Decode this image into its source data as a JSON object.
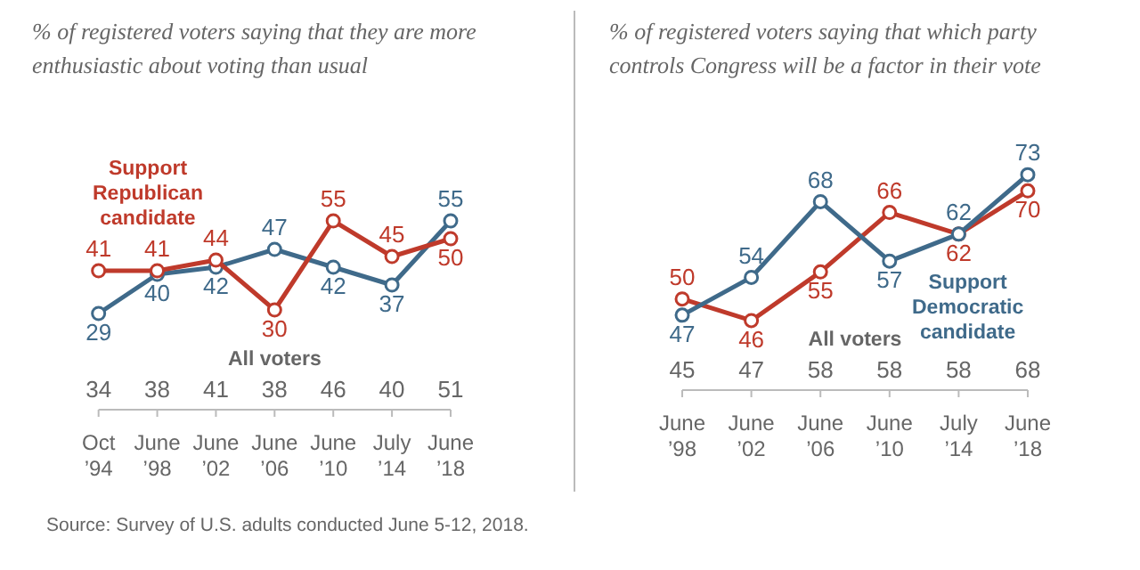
{
  "chart_data": [
    {
      "type": "line",
      "title": "% of registered voters saying that they are more enthusiastic about voting than usual",
      "categories": [
        "Oct ’94",
        "June ’98",
        "June ’02",
        "June ’06",
        "June ’10",
        "July ’14",
        "June ’18"
      ],
      "marker": "circle",
      "data_labels": true,
      "legend": false,
      "grid": false,
      "series": [
        {
          "name": "Support Republican candidate",
          "color": "#bf3a2b",
          "values": [
            41,
            41,
            44,
            30,
            55,
            45,
            50
          ]
        },
        {
          "color": "#3f6a8a",
          "values": [
            29,
            40,
            42,
            47,
            42,
            37,
            55
          ]
        }
      ],
      "annotations": [
        "Source: Survey of U.S. adults conducted June 5-12, 2018."
      ]
    },
    {
      "type": "other",
      "title": "All voters",
      "data_labels": true,
      "values": [
        34,
        38,
        41,
        38,
        46,
        40,
        51
      ]
    },
    {
      "type": "line",
      "title": "% of registered voters saying that which party controls Congress will be a factor in their vote",
      "categories": [
        "June ’98",
        "June ’02",
        "June ’06",
        "June ’10",
        "July ’14",
        "June ’18"
      ],
      "marker": "circle",
      "data_labels": true,
      "legend": false,
      "grid": false,
      "series": [
        {
          "name": "Support Democratic candidate",
          "color": "#3f6a8a",
          "values": [
            47,
            54,
            68,
            57,
            62,
            73
          ]
        },
        {
          "color": "#bf3a2b",
          "values": [
            50,
            46,
            55,
            66,
            62,
            70
          ]
        }
      ]
    },
    {
      "type": "other",
      "title": "All voters",
      "data_labels": true,
      "values": [
        45,
        47,
        58,
        58,
        58,
        68
      ]
    }
  ]
}
